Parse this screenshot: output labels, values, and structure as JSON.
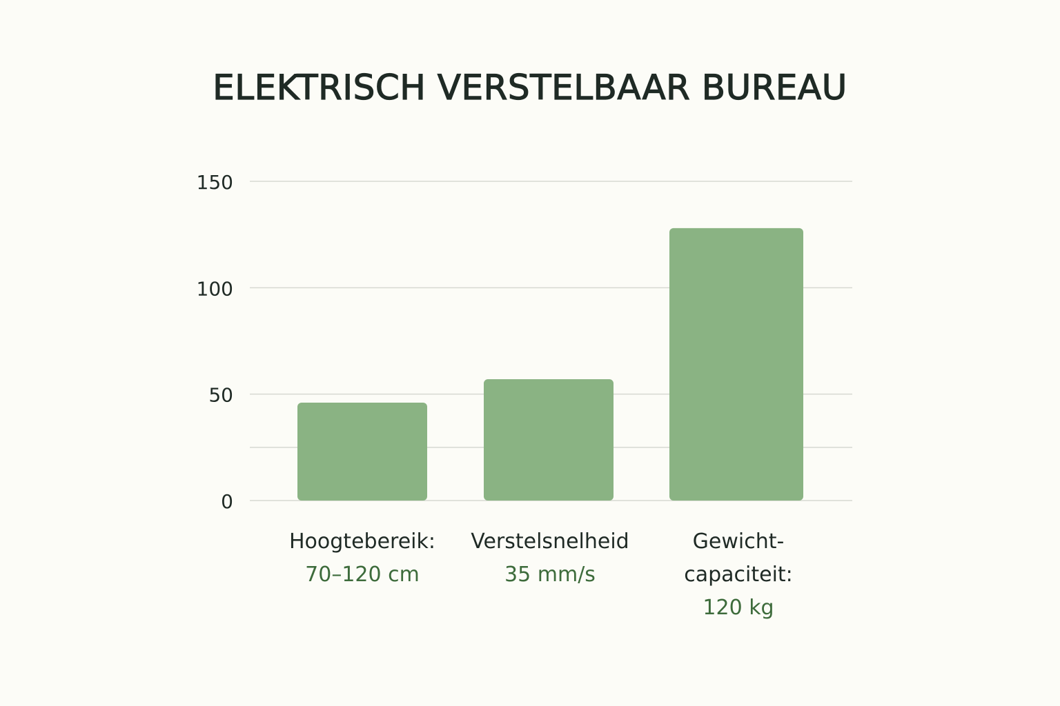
{
  "colors": {
    "bar": "#8ab383",
    "grid": "#d6d9d2",
    "axis_text": "#1f2a25",
    "spec_text": "#3d6b3b",
    "background": "#fcfcf7"
  },
  "chart_data": {
    "type": "bar",
    "title": "ELEKTRISCH VERSTELBAAR BUREAU",
    "xlabel": "",
    "ylabel": "",
    "ylim": [
      0,
      150
    ],
    "yticks": [
      0,
      50,
      100,
      150
    ],
    "gridlines": [
      0,
      25,
      50,
      100,
      150
    ],
    "grid": true,
    "categories": [
      {
        "name": "Hoogtebereik:",
        "spec": "70–120 cm"
      },
      {
        "name": "Verstelsnelheid",
        "spec": "35 mm/s"
      },
      {
        "name": "Gewicht-\ncapaciteit:",
        "spec": "120 kg"
      }
    ],
    "values": [
      46,
      57,
      128
    ]
  }
}
